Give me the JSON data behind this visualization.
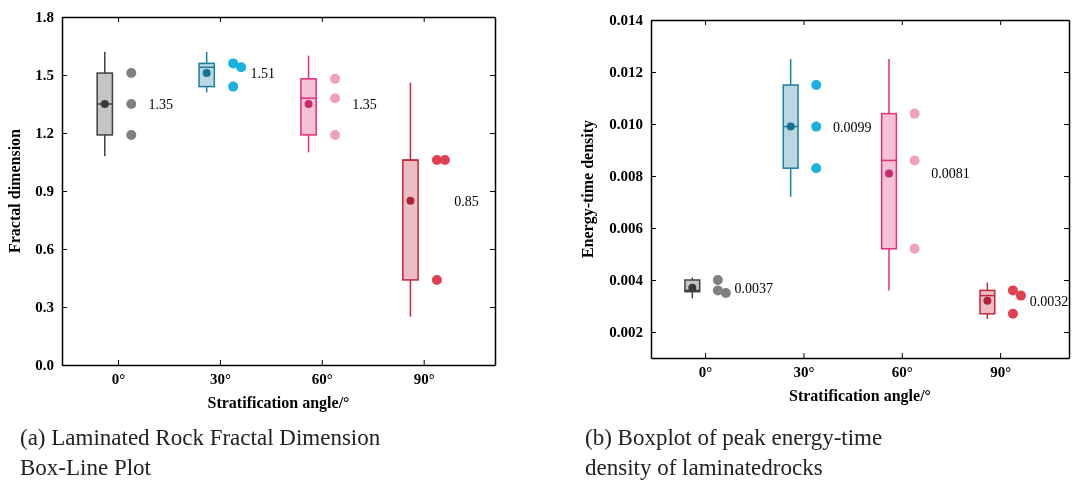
{
  "chart_data": [
    {
      "type": "box",
      "xlabel": "Stratification angle/°",
      "ylabel": "Fractal dimension",
      "categories": [
        "0°",
        "30°",
        "60°",
        "90°"
      ],
      "boxes": [
        {
          "low": 1.08,
          "q1": 1.19,
          "median": 1.35,
          "q3": 1.51,
          "high": 1.62,
          "mean": 1.35
        },
        {
          "low": 1.41,
          "q1": 1.44,
          "median": 1.54,
          "q3": 1.56,
          "high": 1.62,
          "mean": 1.51
        },
        {
          "low": 1.1,
          "q1": 1.19,
          "median": 1.38,
          "q3": 1.48,
          "high": 1.6,
          "mean": 1.35
        },
        {
          "low": 0.25,
          "q1": 0.44,
          "median": 1.06,
          "q3": 1.06,
          "high": 1.46,
          "mean": 0.85
        }
      ],
      "colors": [
        "#404040",
        "#1a7fa0",
        "#e0307a",
        "#c0283c"
      ],
      "series": [
        {
          "type": "scatter",
          "x": [
            "0°",
            "0°",
            "0°",
            "30°",
            "30°",
            "30°",
            "60°",
            "60°",
            "60°",
            "90°",
            "90°",
            "90°"
          ],
          "values": [
            1.51,
            1.35,
            1.19,
            1.56,
            1.54,
            1.44,
            1.48,
            1.38,
            1.19,
            1.06,
            1.06,
            0.44
          ],
          "colors": [
            "#808080",
            "#808080",
            "#808080",
            "#1ab0e0",
            "#1ab0e0",
            "#1ab0e0",
            "#f0a0c0",
            "#f0a0c0",
            "#f0a0c0",
            "#e04050",
            "#e04050",
            "#e04050"
          ]
        }
      ],
      "ylim": [
        0,
        1.8
      ],
      "yticks": [
        {
          "value": 0,
          "label": "0.0"
        },
        0.3,
        0.6,
        0.9,
        1.2,
        1.5,
        1.8
      ],
      "annotations": [
        "1.35",
        "1.51",
        "1.35",
        "0.85",
        "(a) Laminated Rock Fractal Dimension Box-Line Plot"
      ]
    },
    {
      "type": "box",
      "xlabel": "Stratification angle/°",
      "ylabel": "Energy-time density",
      "categories": [
        "0°",
        "30°",
        "60°",
        "90°"
      ],
      "boxes": [
        {
          "low": 0.0033,
          "q1": 0.00355,
          "median": 0.0036,
          "q3": 0.004,
          "high": 0.0041,
          "mean": 0.0037
        },
        {
          "low": 0.0072,
          "q1": 0.0083,
          "median": 0.0099,
          "q3": 0.0115,
          "high": 0.0125,
          "mean": 0.0099
        },
        {
          "low": 0.0036,
          "q1": 0.0052,
          "median": 0.0086,
          "q3": 0.0104,
          "high": 0.0125,
          "mean": 0.0081
        },
        {
          "low": 0.0025,
          "q1": 0.0027,
          "median": 0.0034,
          "q3": 0.0036,
          "high": 0.0039,
          "mean": 0.0032
        }
      ],
      "colors": [
        "#404040",
        "#1a7fa0",
        "#e0307a",
        "#c0283c"
      ],
      "series": [
        {
          "type": "scatter",
          "x": [
            "0°",
            "0°",
            "0°",
            "30°",
            "30°",
            "30°",
            "60°",
            "60°",
            "60°",
            "90°",
            "90°",
            "90°"
          ],
          "values": [
            0.004,
            0.0036,
            0.0035,
            0.0115,
            0.0099,
            0.0083,
            0.0104,
            0.0086,
            0.0052,
            0.0036,
            0.0034,
            0.0027
          ],
          "colors": [
            "#808080",
            "#808080",
            "#808080",
            "#1ab0e0",
            "#1ab0e0",
            "#1ab0e0",
            "#f0a0c0",
            "#f0a0c0",
            "#f0a0c0",
            "#e04050",
            "#e04050",
            "#e04050"
          ]
        }
      ],
      "ylim": [
        0.001,
        0.014
      ],
      "yticks": [
        0.002,
        0.004,
        0.006,
        0.008,
        {
          "value": 0.01,
          "label": "0.010"
        },
        0.012,
        0.014
      ],
      "annotations": [
        "0.0037",
        "0.0099",
        "0.0081",
        "0.0032",
        "(b) Boxplot of peak energy-time density of laminatedrocks"
      ]
    }
  ]
}
